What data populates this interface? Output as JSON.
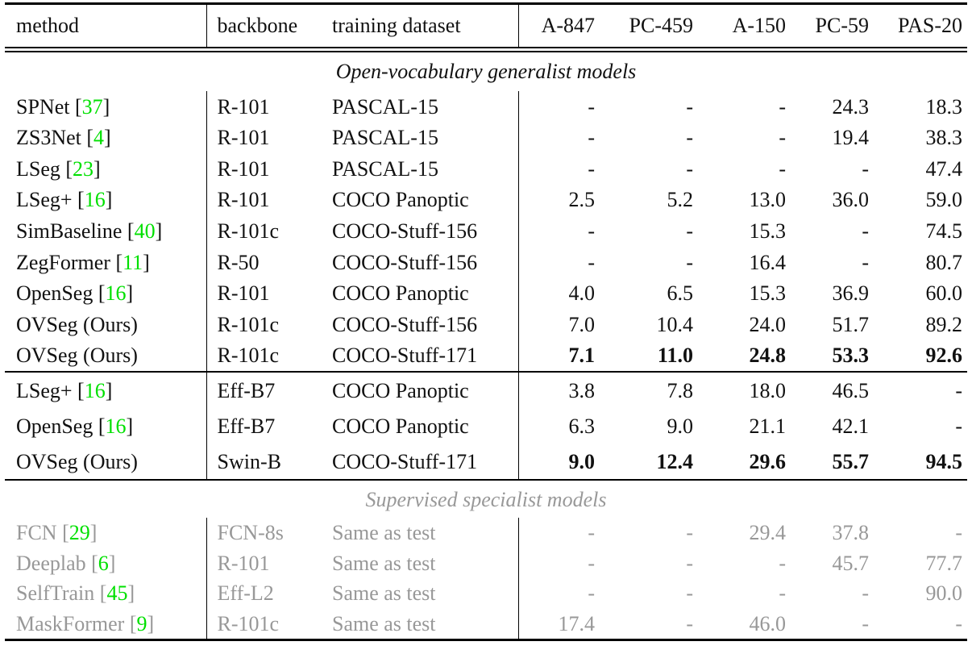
{
  "colors": {
    "citation_green": "#00e000",
    "gray_text": "#989898",
    "text_black": "#111111"
  },
  "table": {
    "columns": [
      "method",
      "backbone",
      "training dataset",
      "A-847",
      "PC-459",
      "A-150",
      "PC-59",
      "PAS-20"
    ],
    "sections": [
      {
        "title": "Open-vocabulary generalist models",
        "gray": false,
        "rows": [
          {
            "method": "SPNet",
            "cite": "37",
            "backbone": "R-101",
            "dataset": "PASCAL-15",
            "values": [
              "-",
              "-",
              "-",
              "24.3",
              "18.3"
            ],
            "bold_values": false
          },
          {
            "method": "ZS3Net",
            "cite": "4",
            "backbone": "R-101",
            "dataset": "PASCAL-15",
            "values": [
              "-",
              "-",
              "-",
              "19.4",
              "38.3"
            ],
            "bold_values": false
          },
          {
            "method": "LSeg",
            "cite": "23",
            "backbone": "R-101",
            "dataset": "PASCAL-15",
            "values": [
              "-",
              "-",
              "-",
              "-",
              "47.4"
            ],
            "bold_values": false
          },
          {
            "method": "LSeg+",
            "cite": "16",
            "backbone": "R-101",
            "dataset": "COCO Panoptic",
            "values": [
              "2.5",
              "5.2",
              "13.0",
              "36.0",
              "59.0"
            ],
            "bold_values": false
          },
          {
            "method": "SimBaseline",
            "cite": "40",
            "backbone": "R-101c",
            "dataset": "COCO-Stuff-156",
            "values": [
              "-",
              "-",
              "15.3",
              "-",
              "74.5"
            ],
            "bold_values": false
          },
          {
            "method": "ZegFormer",
            "cite": "11",
            "backbone": "R-50",
            "dataset": "COCO-Stuff-156",
            "values": [
              "-",
              "-",
              "16.4",
              "-",
              "80.7"
            ],
            "bold_values": false
          },
          {
            "method": "OpenSeg",
            "cite": "16",
            "backbone": "R-101",
            "dataset": "COCO Panoptic",
            "values": [
              "4.0",
              "6.5",
              "15.3",
              "36.9",
              "60.0"
            ],
            "bold_values": false
          },
          {
            "method": "OVSeg (Ours)",
            "cite": null,
            "backbone": "R-101c",
            "dataset": "COCO-Stuff-156",
            "values": [
              "7.0",
              "10.4",
              "24.0",
              "51.7",
              "89.2"
            ],
            "bold_values": false
          },
          {
            "method": "OVSeg (Ours)",
            "cite": null,
            "backbone": "R-101c",
            "dataset": "COCO-Stuff-171",
            "values": [
              "7.1",
              "11.0",
              "24.8",
              "53.3",
              "92.6"
            ],
            "bold_values": true
          }
        ]
      },
      {
        "title": null,
        "gray": false,
        "rows": [
          {
            "method": "LSeg+",
            "cite": "16",
            "backbone": "Eff-B7",
            "dataset": "COCO Panoptic",
            "values": [
              "3.8",
              "7.8",
              "18.0",
              "46.5",
              "-"
            ],
            "bold_values": false
          },
          {
            "method": "OpenSeg",
            "cite": "16",
            "backbone": "Eff-B7",
            "dataset": "COCO Panoptic",
            "values": [
              "6.3",
              "9.0",
              "21.1",
              "42.1",
              "-"
            ],
            "bold_values": false
          },
          {
            "method": "OVSeg (Ours)",
            "cite": null,
            "backbone": "Swin-B",
            "dataset": "COCO-Stuff-171",
            "values": [
              "9.0",
              "12.4",
              "29.6",
              "55.7",
              "94.5"
            ],
            "bold_values": true
          }
        ]
      },
      {
        "title": "Supervised specialist models",
        "gray": true,
        "rows": [
          {
            "method": "FCN",
            "cite": "29",
            "backbone": "FCN-8s",
            "dataset": "Same as test",
            "values": [
              "-",
              "-",
              "29.4",
              "37.8",
              "-"
            ],
            "bold_values": false
          },
          {
            "method": "Deeplab",
            "cite": "6",
            "backbone": "R-101",
            "dataset": "Same as test",
            "values": [
              "-",
              "-",
              "-",
              "45.7",
              "77.7"
            ],
            "bold_values": false
          },
          {
            "method": "SelfTrain",
            "cite": "45",
            "backbone": "Eff-L2",
            "dataset": "Same as test",
            "values": [
              "-",
              "-",
              "-",
              "-",
              "90.0"
            ],
            "bold_values": false
          },
          {
            "method": "MaskFormer",
            "cite": "9",
            "backbone": "R-101c",
            "dataset": "Same as test",
            "values": [
              "17.4",
              "-",
              "46.0",
              "-",
              "-"
            ],
            "bold_values": false
          }
        ]
      }
    ]
  }
}
